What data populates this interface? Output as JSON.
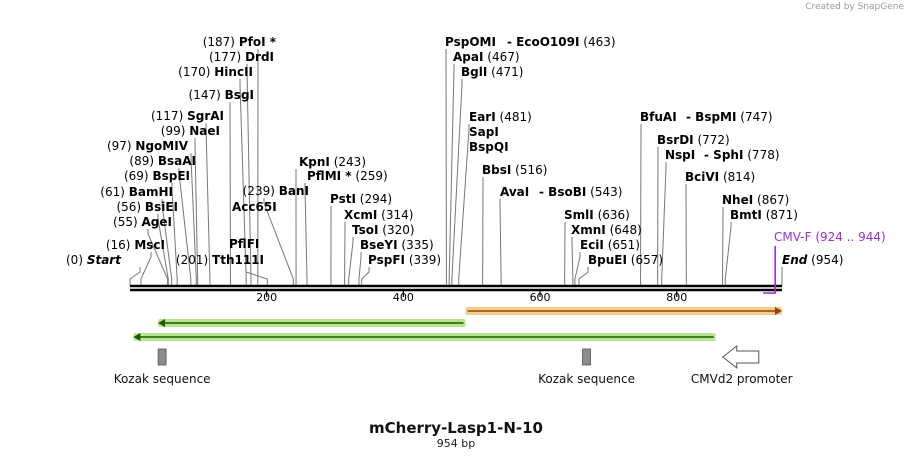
{
  "credit": "Created by SnapGene",
  "construct": {
    "name": "mCherry-Lasp1-N-10",
    "length_label": "954 bp",
    "length": 954
  },
  "axis_ticks": [
    200,
    400,
    600,
    800
  ],
  "sites": [
    {
      "name": "Start",
      "pos_label": "(0)",
      "pos": 0,
      "italic": true
    },
    {
      "name": "MscI",
      "pos_label": "(16)",
      "pos": 16
    },
    {
      "name": "AgeI",
      "pos_label": "(55)",
      "pos": 55
    },
    {
      "name": "BsiEI",
      "pos_label": "(56)",
      "pos": 56
    },
    {
      "name": "BamHI",
      "pos_label": "(61)",
      "pos": 61
    },
    {
      "name": "BspEI",
      "pos_label": "(69)",
      "pos": 69
    },
    {
      "name": "BsaAI",
      "pos_label": "(89)",
      "pos": 89
    },
    {
      "name": "NgoMIV",
      "pos_label": "(97)",
      "pos": 97
    },
    {
      "name": "NaeI",
      "pos_label": "(99)",
      "pos": 99
    },
    {
      "name": "SgrAI",
      "pos_label": "(117)",
      "pos": 117
    },
    {
      "name": "BsgI",
      "pos_label": "(147)",
      "pos": 147
    },
    {
      "name": "HincII",
      "pos_label": "(170)",
      "pos": 170
    },
    {
      "name": "DrdI",
      "pos_label": "(177)",
      "pos": 177
    },
    {
      "name": "PfoI",
      "pos_label": "(187)",
      "pos": 187,
      "star": " *"
    },
    {
      "name": "Tth111I",
      "pos_label": "(201)",
      "pos": 201
    },
    {
      "name": "PflFI",
      "pos_label": "",
      "pos": 201
    },
    {
      "name": "Acc65I",
      "pos_label": "",
      "pos": 239
    },
    {
      "name": "BanI",
      "pos_label": "(239)",
      "pos": 239
    },
    {
      "name": "KpnI",
      "pos_label": "(243)",
      "pos": 243
    },
    {
      "name": "PflMI",
      "pos_label": "(259)",
      "pos": 259,
      "star": " *"
    },
    {
      "name": "PstI",
      "pos_label": "(294)",
      "pos": 294
    },
    {
      "name": "XcmI",
      "pos_label": "(314)",
      "pos": 314
    },
    {
      "name": "TsoI",
      "pos_label": "(320)",
      "pos": 320
    },
    {
      "name": "BseYI",
      "pos_label": "(335)",
      "pos": 335
    },
    {
      "name": "PspFI",
      "pos_label": "(339)",
      "pos": 339
    },
    {
      "name": "PspOMI",
      "pos_label": "",
      "pos": 463
    },
    {
      "name": "EcoO109I",
      "pos_label": "(463)",
      "pos": 463,
      "prefix": "- "
    },
    {
      "name": "ApaI",
      "pos_label": "(467)",
      "pos": 467
    },
    {
      "name": "BglI",
      "pos_label": "(471)",
      "pos": 471
    },
    {
      "name": "EarI",
      "pos_label": "(481)",
      "pos": 481
    },
    {
      "name": "SapI",
      "pos_label": "",
      "pos": 481
    },
    {
      "name": "BspQI",
      "pos_label": "",
      "pos": 481
    },
    {
      "name": "BbsI",
      "pos_label": "(516)",
      "pos": 516
    },
    {
      "name": "AvaI",
      "pos_label": "",
      "pos": 543
    },
    {
      "name": "BsoBI",
      "pos_label": "(543)",
      "pos": 543,
      "prefix": "- "
    },
    {
      "name": "SmlI",
      "pos_label": "(636)",
      "pos": 636
    },
    {
      "name": "XmnI",
      "pos_label": "(648)",
      "pos": 648
    },
    {
      "name": "EciI",
      "pos_label": "(651)",
      "pos": 651
    },
    {
      "name": "BpuEI",
      "pos_label": "(657)",
      "pos": 657
    },
    {
      "name": "BfuAI",
      "pos_label": "",
      "pos": 747
    },
    {
      "name": "BspMI",
      "pos_label": "(747)",
      "pos": 747,
      "prefix": "- "
    },
    {
      "name": "BsrDI",
      "pos_label": "(772)",
      "pos": 772
    },
    {
      "name": "NspI",
      "pos_label": "",
      "pos": 778
    },
    {
      "name": "SphI",
      "pos_label": "(778)",
      "pos": 778,
      "prefix": "- "
    },
    {
      "name": "BciVI",
      "pos_label": "(814)",
      "pos": 814
    },
    {
      "name": "NheI",
      "pos_label": "(867)",
      "pos": 867
    },
    {
      "name": "BmtI",
      "pos_label": "(871)",
      "pos": 871
    },
    {
      "name": "End",
      "pos_label": "(954)",
      "pos": 954,
      "italic": true
    }
  ],
  "primer": {
    "name": "CMV-F",
    "range_label": "(924 .. 944)",
    "start": 924,
    "end": 944,
    "color": "#9b30c8"
  },
  "features": [
    {
      "kind": "orange-arrow",
      "start": 491,
      "end": 954,
      "direction": "forward",
      "color": "#f0a030"
    },
    {
      "kind": "green-arrow",
      "start": 41,
      "end": 491,
      "direction": "reverse",
      "color": "#7ccf3a"
    },
    {
      "kind": "green-arrow",
      "start": 5,
      "end": 857,
      "direction": "reverse",
      "color": "#7ccf3a"
    },
    {
      "kind": "box",
      "name": "Kozak sequence",
      "pos": 47,
      "color": "#8c8c8c"
    },
    {
      "kind": "box",
      "name": "Kozak sequence",
      "pos": 668,
      "color": "#8c8c8c"
    },
    {
      "kind": "promoter",
      "name": "CMVd2 promoter",
      "pos": 920,
      "color": "#ffffff"
    }
  ]
}
